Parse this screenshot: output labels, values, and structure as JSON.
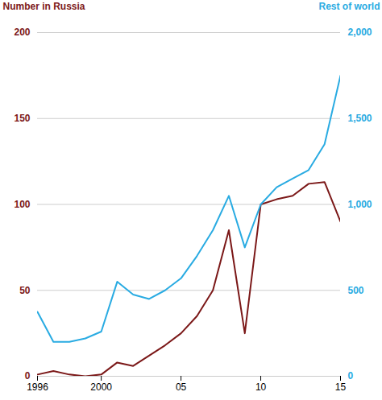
{
  "chart_data": {
    "type": "line",
    "ylabel": "Number in Russia",
    "y2label": "Rest of world",
    "x": [
      1996,
      1997,
      1998,
      1999,
      2000,
      2001,
      2002,
      2003,
      2004,
      2005,
      2006,
      2007,
      2008,
      2009,
      2010,
      2011,
      2012,
      2013,
      2014,
      2015
    ],
    "series": [
      {
        "color": "#7B1818",
        "values": [
          1,
          3,
          1,
          0,
          1,
          8,
          6,
          12,
          18,
          25,
          35,
          50,
          85,
          25,
          100,
          103,
          105,
          112,
          113,
          90
        ]
      },
      {
        "color": "#29ABE2",
        "axis": "y2",
        "values": [
          375,
          200,
          200,
          220,
          260,
          550,
          475,
          450,
          500,
          570,
          700,
          850,
          1050,
          750,
          1000,
          1100,
          1150,
          1200,
          1350,
          1750
        ]
      }
    ],
    "xlim": [
      1996,
      2015
    ],
    "xticks": [
      1996,
      2000,
      {
        "value": 2005,
        "label": "05"
      },
      {
        "value": 2010,
        "label": "10"
      },
      {
        "value": 2015,
        "label": "15"
      }
    ],
    "ylim": [
      0,
      200
    ],
    "yticks": [
      0,
      50,
      100,
      150,
      200
    ],
    "y2lim": [
      0,
      2000
    ],
    "y2ticks": [
      0,
      500,
      {
        "value": 1000,
        "label": "1,000"
      },
      {
        "value": 1500,
        "label": "1,500"
      },
      {
        "value": 2000,
        "label": "2,000"
      }
    ],
    "grid": true
  }
}
